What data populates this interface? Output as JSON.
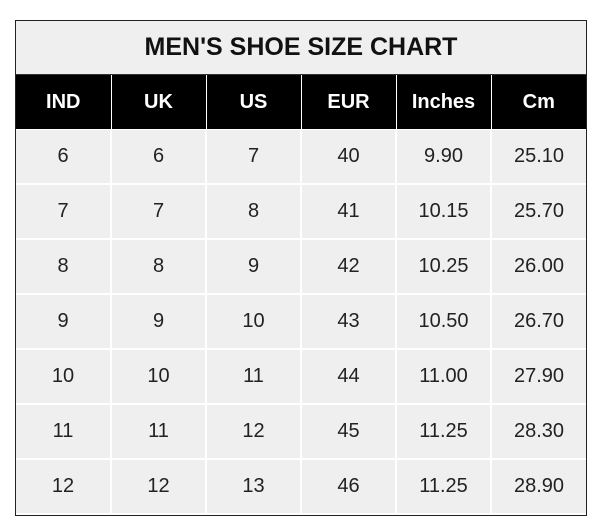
{
  "title": "MEN'S SHOE SIZE CHART",
  "columns": [
    "IND",
    "UK",
    "US",
    "EUR",
    "Inches",
    "Cm"
  ],
  "rows": [
    [
      "6",
      "6",
      "7",
      "40",
      "9.90",
      "25.10"
    ],
    [
      "7",
      "7",
      "8",
      "41",
      "10.15",
      "25.70"
    ],
    [
      "8",
      "8",
      "9",
      "42",
      "10.25",
      "26.00"
    ],
    [
      "9",
      "9",
      "10",
      "43",
      "10.50",
      "26.70"
    ],
    [
      "10",
      "10",
      "11",
      "44",
      "11.00",
      "27.90"
    ],
    [
      "11",
      "11",
      "12",
      "45",
      "11.25",
      "28.30"
    ],
    [
      "12",
      "12",
      "13",
      "46",
      "11.25",
      "28.90"
    ]
  ]
}
